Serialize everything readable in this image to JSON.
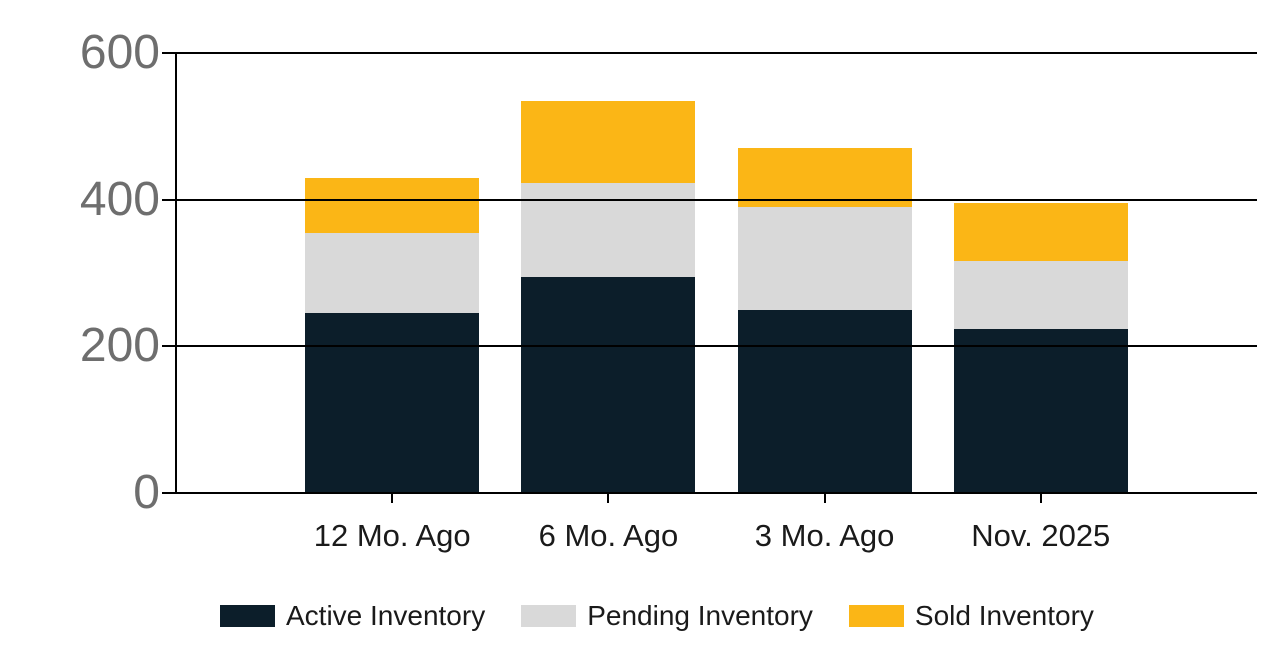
{
  "page": {
    "background": "#FFFFFF"
  },
  "chart_data": {
    "type": "bar",
    "stacked": true,
    "title": "",
    "xlabel": "",
    "ylabel": "",
    "categories": [
      "12 Mo. Ago",
      "6 Mo. Ago",
      "3 Mo. Ago",
      "Nov. 2025"
    ],
    "series": [
      {
        "name": "Active Inventory",
        "color": "#0C1E2A",
        "values": [
          245,
          295,
          250,
          224
        ]
      },
      {
        "name": "Pending Inventory",
        "color": "#D9D9D9",
        "values": [
          109,
          128,
          140,
          92
        ]
      },
      {
        "name": "Sold Inventory",
        "color": "#FBB616",
        "values": [
          76,
          112,
          81,
          79
        ]
      }
    ],
    "stack_totals": [
      430,
      535,
      471,
      395
    ],
    "y_axis": {
      "min": 0,
      "max": 600,
      "ticks": [
        600,
        400,
        200,
        0
      ]
    },
    "grid": "horizontal",
    "legend_position": "bottom",
    "axis_color": "#000000",
    "y_tick_label_color": "#6E6E6E",
    "category_label_color": "#1A1A1A"
  }
}
